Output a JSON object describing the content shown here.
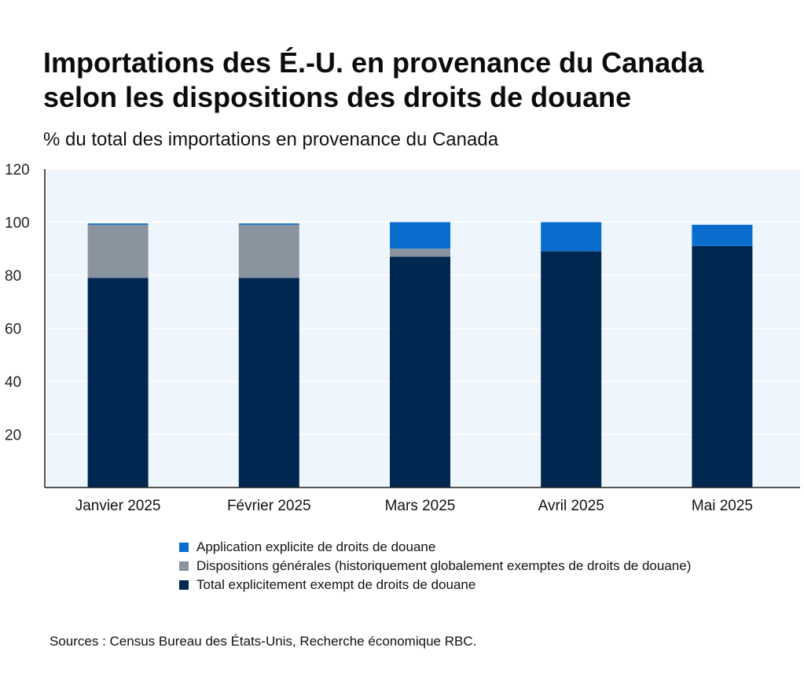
{
  "title_line1": "Importations des É.-U. en provenance du Canada",
  "title_line2": "selon les dispositions des droits de douane",
  "subtitle": "% du total des importations en provenance du Canada",
  "source": "Sources : Census Bureau des États-Unis, Recherche économique RBC.",
  "colors": {
    "plot_bg": "#eef5fc",
    "explicit": "#0a6ccc",
    "general": "#8a949e",
    "exempt": "#00274f"
  },
  "chart_data": {
    "type": "bar",
    "stacked": true,
    "categories": [
      "Janvier 2025",
      "Février 2025",
      "Mars 2025",
      "Avril 2025",
      "Mai 2025"
    ],
    "series": [
      {
        "name": "Total explicitement exempt de droits de douane",
        "key": "exempt",
        "values": [
          79,
          79,
          87,
          89,
          91
        ]
      },
      {
        "name": "Dispositions générales (historiquement globalement exemptes de droits de douane)",
        "key": "general",
        "values": [
          20,
          20,
          3,
          0,
          0
        ]
      },
      {
        "name": "Application explicite de droits de douane",
        "key": "explicit",
        "values": [
          0.5,
          0.5,
          10,
          11,
          8
        ]
      }
    ],
    "legend_order": [
      "explicit",
      "general",
      "exempt"
    ],
    "yticks": [
      "20",
      "40",
      "60",
      "80",
      "100",
      "120"
    ],
    "ylim": [
      0,
      120
    ],
    "grid": true,
    "title": "Importations des É.-U. en provenance du Canada selon les dispositions des droits de douane",
    "ylabel": "% du total des importations en provenance du Canada",
    "xlabel": ""
  }
}
